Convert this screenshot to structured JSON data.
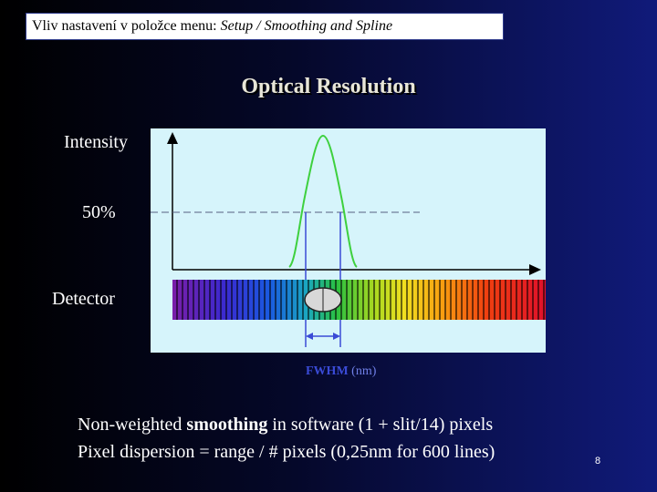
{
  "header": {
    "prefix": "Vliv nastavení v položce menu: ",
    "menu_path": "Setup / Smoothing and Spline"
  },
  "title": "Optical Resolution",
  "labels": {
    "intensity": "Intensity",
    "half": "50%",
    "detector": "Detector",
    "fwhm": "FWHM",
    "fwhm_unit": "(nm)"
  },
  "body": {
    "line1_pre": "Non-weighted ",
    "line1_bold": "smoothing",
    "line1_post": " in software (1 + slit/14) pixels",
    "line2": "Pixel dispersion = range / # pixels (0,25nm for 600 lines)"
  },
  "page_number": "8",
  "colors": {
    "peak_curve": "#3ed03e",
    "half_max_line": "#556080",
    "fwhm_marker": "#3a4bd6",
    "diagram_bg": "#d6f4fb"
  }
}
